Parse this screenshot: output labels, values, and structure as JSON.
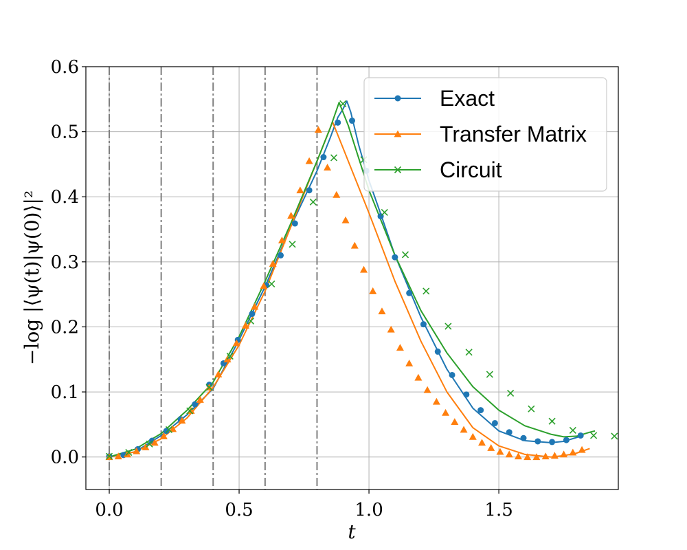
{
  "chart_data": {
    "type": "line",
    "xlabel": "t",
    "ylabel": "−log |⟨ψ(t)|ψ(0)⟩|²",
    "xlim": [
      -0.09,
      1.96
    ],
    "ylim": [
      -0.05,
      0.6
    ],
    "xticks": [
      0.0,
      0.5,
      1.0,
      1.5
    ],
    "xtick_labels": [
      "0.0",
      "0.5",
      "1.0",
      "1.5"
    ],
    "yticks": [
      0.0,
      0.1,
      0.2,
      0.3,
      0.4,
      0.5,
      0.6
    ],
    "ytick_labels": [
      "0.0",
      "0.1",
      "0.2",
      "0.3",
      "0.4",
      "0.5",
      "0.6"
    ],
    "grid": true,
    "legend_position": "top-right",
    "vertical_dashdot_lines_x": [
      0.0,
      0.2,
      0.4,
      0.6,
      0.8
    ],
    "series": [
      {
        "name": "Exact",
        "color": "#1f77b4",
        "marker": "circle",
        "line": [
          [
            0.0,
            0.0
          ],
          [
            0.1,
            0.008
          ],
          [
            0.2,
            0.033
          ],
          [
            0.3,
            0.065
          ],
          [
            0.4,
            0.105
          ],
          [
            0.5,
            0.18
          ],
          [
            0.6,
            0.262
          ],
          [
            0.7,
            0.355
          ],
          [
            0.8,
            0.44
          ],
          [
            0.85,
            0.49
          ],
          [
            0.88,
            0.522
          ],
          [
            0.9,
            0.535
          ],
          [
            0.915,
            0.547
          ],
          [
            0.93,
            0.53
          ],
          [
            0.96,
            0.48
          ],
          [
            1.0,
            0.425
          ],
          [
            1.05,
            0.368
          ],
          [
            1.1,
            0.31
          ],
          [
            1.2,
            0.215
          ],
          [
            1.3,
            0.135
          ],
          [
            1.4,
            0.075
          ],
          [
            1.5,
            0.04
          ],
          [
            1.6,
            0.025
          ],
          [
            1.7,
            0.022
          ],
          [
            1.75,
            0.024
          ],
          [
            1.8,
            0.03
          ],
          [
            1.825,
            0.034
          ]
        ],
        "markers": [
          [
            0.0,
            0.001
          ],
          [
            0.055,
            0.003
          ],
          [
            0.11,
            0.012
          ],
          [
            0.165,
            0.025
          ],
          [
            0.22,
            0.04
          ],
          [
            0.275,
            0.058
          ],
          [
            0.33,
            0.081
          ],
          [
            0.385,
            0.111
          ],
          [
            0.44,
            0.144
          ],
          [
            0.495,
            0.18
          ],
          [
            0.55,
            0.22
          ],
          [
            0.605,
            0.264
          ],
          [
            0.66,
            0.31
          ],
          [
            0.715,
            0.359
          ],
          [
            0.77,
            0.41
          ],
          [
            0.825,
            0.461
          ],
          [
            0.88,
            0.514
          ],
          [
            0.935,
            0.517
          ],
          [
            0.99,
            0.44
          ],
          [
            1.045,
            0.37
          ],
          [
            1.1,
            0.307
          ],
          [
            1.155,
            0.252
          ],
          [
            1.21,
            0.204
          ],
          [
            1.265,
            0.162
          ],
          [
            1.32,
            0.126
          ],
          [
            1.375,
            0.096
          ],
          [
            1.43,
            0.072
          ],
          [
            1.485,
            0.052
          ],
          [
            1.54,
            0.038
          ],
          [
            1.595,
            0.029
          ],
          [
            1.65,
            0.024
          ],
          [
            1.705,
            0.023
          ],
          [
            1.76,
            0.026
          ],
          [
            1.815,
            0.033
          ]
        ]
      },
      {
        "name": "Transfer Matrix",
        "color": "#ff7f0e",
        "marker": "triangle",
        "line": [
          [
            0.0,
            0.0
          ],
          [
            0.1,
            0.008
          ],
          [
            0.2,
            0.028
          ],
          [
            0.3,
            0.06
          ],
          [
            0.4,
            0.107
          ],
          [
            0.5,
            0.172
          ],
          [
            0.6,
            0.255
          ],
          [
            0.7,
            0.355
          ],
          [
            0.8,
            0.455
          ],
          [
            0.86,
            0.515
          ],
          [
            0.9,
            0.475
          ],
          [
            1.0,
            0.375
          ],
          [
            1.1,
            0.27
          ],
          [
            1.2,
            0.178
          ],
          [
            1.3,
            0.1
          ],
          [
            1.4,
            0.045
          ],
          [
            1.5,
            0.017
          ],
          [
            1.6,
            0.004
          ],
          [
            1.7,
            0.0
          ],
          [
            1.75,
            0.002
          ],
          [
            1.8,
            0.006
          ],
          [
            1.85,
            0.013
          ]
        ],
        "markers": [
          [
            0.0,
            0.0
          ],
          [
            0.035,
            0.001
          ],
          [
            0.07,
            0.004
          ],
          [
            0.105,
            0.009
          ],
          [
            0.14,
            0.015
          ],
          [
            0.175,
            0.022
          ],
          [
            0.21,
            0.032
          ],
          [
            0.245,
            0.043
          ],
          [
            0.28,
            0.056
          ],
          [
            0.315,
            0.071
          ],
          [
            0.35,
            0.088
          ],
          [
            0.385,
            0.107
          ],
          [
            0.42,
            0.127
          ],
          [
            0.455,
            0.15
          ],
          [
            0.49,
            0.175
          ],
          [
            0.525,
            0.202
          ],
          [
            0.56,
            0.231
          ],
          [
            0.595,
            0.263
          ],
          [
            0.63,
            0.297
          ],
          [
            0.665,
            0.333
          ],
          [
            0.7,
            0.371
          ],
          [
            0.735,
            0.41
          ],
          [
            0.77,
            0.455
          ],
          [
            0.805,
            0.503
          ],
          [
            0.84,
            0.445
          ],
          [
            0.875,
            0.403
          ],
          [
            0.91,
            0.364
          ],
          [
            0.945,
            0.325
          ],
          [
            0.98,
            0.288
          ],
          [
            1.015,
            0.255
          ],
          [
            1.05,
            0.224
          ],
          [
            1.085,
            0.196
          ],
          [
            1.12,
            0.168
          ],
          [
            1.155,
            0.144
          ],
          [
            1.19,
            0.122
          ],
          [
            1.225,
            0.103
          ],
          [
            1.26,
            0.085
          ],
          [
            1.295,
            0.068
          ],
          [
            1.33,
            0.054
          ],
          [
            1.365,
            0.042
          ],
          [
            1.4,
            0.031
          ],
          [
            1.435,
            0.022
          ],
          [
            1.47,
            0.014
          ],
          [
            1.505,
            0.008
          ],
          [
            1.54,
            0.004
          ],
          [
            1.575,
            0.001
          ],
          [
            1.61,
            0.0
          ],
          [
            1.645,
            0.0
          ],
          [
            1.68,
            0.001
          ],
          [
            1.715,
            0.002
          ],
          [
            1.75,
            0.004
          ],
          [
            1.785,
            0.007
          ],
          [
            1.82,
            0.011
          ]
        ]
      },
      {
        "name": "Circuit",
        "color": "#2ca02c",
        "marker": "x",
        "line": [
          [
            0.0,
            0.0
          ],
          [
            0.1,
            0.012
          ],
          [
            0.2,
            0.036
          ],
          [
            0.3,
            0.072
          ],
          [
            0.4,
            0.115
          ],
          [
            0.5,
            0.185
          ],
          [
            0.6,
            0.27
          ],
          [
            0.7,
            0.36
          ],
          [
            0.8,
            0.455
          ],
          [
            0.85,
            0.505
          ],
          [
            0.885,
            0.545
          ],
          [
            0.92,
            0.51
          ],
          [
            1.0,
            0.41
          ],
          [
            1.1,
            0.31
          ],
          [
            1.2,
            0.225
          ],
          [
            1.3,
            0.16
          ],
          [
            1.4,
            0.108
          ],
          [
            1.5,
            0.072
          ],
          [
            1.6,
            0.048
          ],
          [
            1.7,
            0.035
          ],
          [
            1.75,
            0.031
          ],
          [
            1.8,
            0.032
          ],
          [
            1.85,
            0.038
          ],
          [
            1.87,
            0.04
          ]
        ],
        "markers": [
          [
            0.0,
            0.001
          ],
          [
            0.075,
            0.007
          ],
          [
            0.155,
            0.02
          ],
          [
            0.23,
            0.042
          ],
          [
            0.31,
            0.071
          ],
          [
            0.385,
            0.107
          ],
          [
            0.465,
            0.155
          ],
          [
            0.545,
            0.209
          ],
          [
            0.625,
            0.266
          ],
          [
            0.705,
            0.327
          ],
          [
            0.785,
            0.392
          ],
          [
            0.865,
            0.46
          ],
          [
            0.9,
            0.543
          ],
          [
            0.98,
            0.457
          ],
          [
            1.06,
            0.376
          ],
          [
            1.14,
            0.311
          ],
          [
            1.22,
            0.255
          ],
          [
            1.305,
            0.201
          ],
          [
            1.385,
            0.161
          ],
          [
            1.465,
            0.127
          ],
          [
            1.545,
            0.098
          ],
          [
            1.625,
            0.074
          ],
          [
            1.705,
            0.055
          ],
          [
            1.785,
            0.041
          ],
          [
            1.865,
            0.033
          ],
          [
            1.945,
            0.032
          ]
        ]
      }
    ]
  }
}
